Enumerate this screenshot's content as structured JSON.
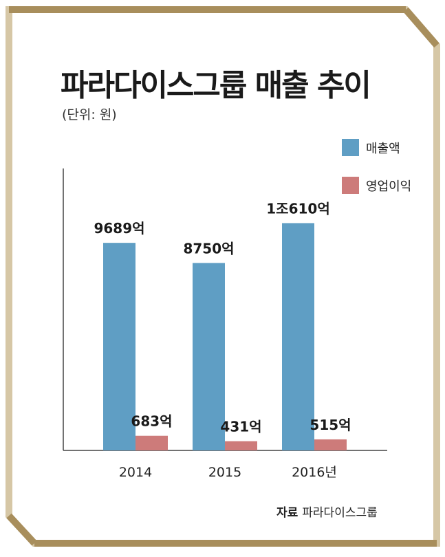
{
  "title": "파라다이스그룹 매출 추이",
  "unit_note": "(단위: 원)",
  "source": {
    "label": "자료",
    "name": "파라다이스그룹"
  },
  "colors": {
    "revenue": "#5f9ec4",
    "operating_profit": "#cd7b7a",
    "frame": "#a88e5c",
    "frame_light": "#d6c7a6",
    "axis": "#444444"
  },
  "chart_data": {
    "type": "bar",
    "categories": [
      "2014",
      "2015",
      "2016년"
    ],
    "series": [
      {
        "name": "매출액",
        "values": [
          9689,
          8750,
          10610
        ],
        "labels": [
          "9689억",
          "8750억",
          "1조610억"
        ]
      },
      {
        "name": "영업이익",
        "values": [
          683,
          431,
          515
        ],
        "labels": [
          "683억",
          "431억",
          "515억"
        ]
      }
    ],
    "unit": "억 원",
    "ylim": [
      0,
      13000
    ],
    "legend": "top-right",
    "grid": false
  }
}
